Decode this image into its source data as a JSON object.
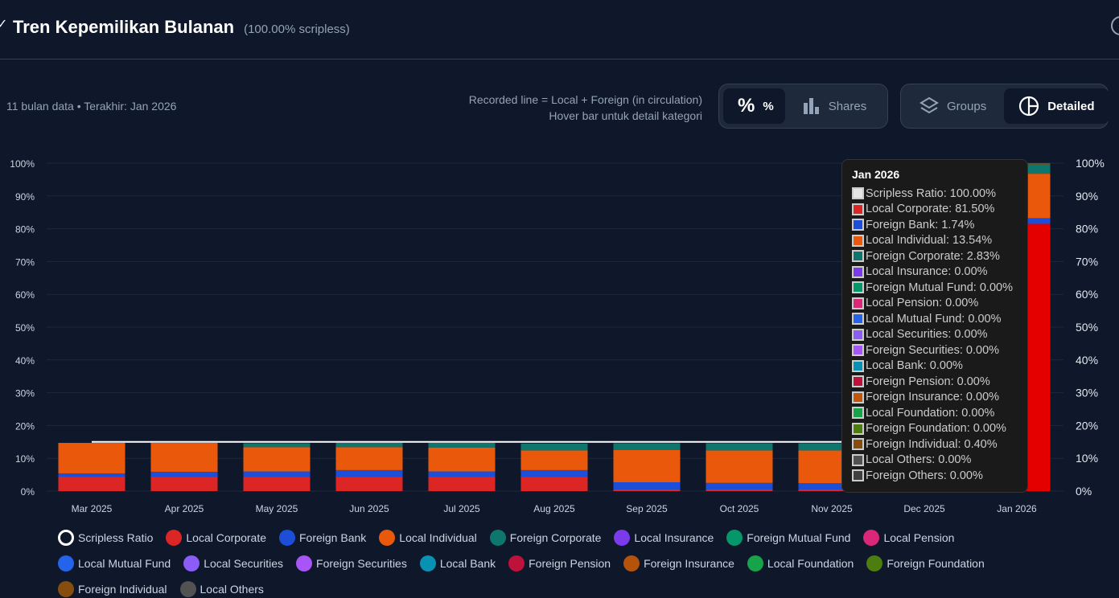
{
  "header": {
    "title": "Tren Kepemilikan Bulanan",
    "subtitle": "(100.00% scripless)"
  },
  "meta": "11 bulan data • Terakhir: Jan 2026",
  "note": [
    "Recorded line = Local + Foreign (in circulation)",
    "Hover bar untuk detail kategori"
  ],
  "toggles": {
    "percent": "%",
    "shares": "Shares",
    "groups": "Groups",
    "detailed": "Detailed"
  },
  "tooltip": {
    "title": "Jan 2026",
    "rows": [
      "Scripless Ratio: 100.00%",
      "Local Corporate: 81.50%",
      "Foreign Bank: 1.74%",
      "Local Individual: 13.54%",
      "Foreign Corporate: 2.83%",
      "Local Insurance: 0.00%",
      "Foreign Mutual Fund: 0.00%",
      "Local Pension: 0.00%",
      "Local Mutual Fund: 0.00%",
      "Local Securities: 0.00%",
      "Foreign Securities: 0.00%",
      "Local Bank: 0.00%",
      "Foreign Pension: 0.00%",
      "Foreign Insurance: 0.00%",
      "Local Foundation: 0.00%",
      "Foreign Foundation: 0.00%",
      "Foreign Individual: 0.40%",
      "Local Others: 0.00%",
      "Foreign Others: 0.00%"
    ],
    "colors": [
      "#e5e5e5",
      "#dc2626",
      "#1d4ed8",
      "#ea580c",
      "#0f766e",
      "#7c3aed",
      "#059669",
      "#db2777",
      "#2563eb",
      "#8b5cf6",
      "#a855f7",
      "#0891b2",
      "#be123c",
      "#c2570c",
      "#16a34a",
      "#4d7c0f",
      "#854d0e",
      "#525252",
      "#404040"
    ]
  },
  "legend": [
    {
      "label": "Scripless Ratio",
      "color": "ring"
    },
    {
      "label": "Local Corporate",
      "color": "#dc2626"
    },
    {
      "label": "Foreign Bank",
      "color": "#1d4ed8"
    },
    {
      "label": "Local Individual",
      "color": "#ea580c"
    },
    {
      "label": "Foreign Corporate",
      "color": "#0f766e"
    },
    {
      "label": "Local Insurance",
      "color": "#7c3aed"
    },
    {
      "label": "Foreign Mutual Fund",
      "color": "#059669"
    },
    {
      "label": "Local Pension",
      "color": "#db2777"
    },
    {
      "label": "Local Mutual Fund",
      "color": "#2563eb"
    },
    {
      "label": "Local Securities",
      "color": "#8b5cf6"
    },
    {
      "label": "Foreign Securities",
      "color": "#a855f7"
    },
    {
      "label": "Local Bank",
      "color": "#0891b2"
    },
    {
      "label": "Foreign Pension",
      "color": "#be123c"
    },
    {
      "label": "Foreign Insurance",
      "color": "#b45309"
    },
    {
      "label": "Local Foundation",
      "color": "#16a34a"
    },
    {
      "label": "Foreign Foundation",
      "color": "#4d7c0f"
    },
    {
      "label": "Foreign Individual",
      "color": "#854d0e"
    },
    {
      "label": "Local Others",
      "color": "#525252"
    }
  ],
  "chart_data": {
    "type": "bar",
    "stacked": true,
    "categories": [
      "Mar 2025",
      "Apr 2025",
      "May 2025",
      "Jun 2025",
      "Jul 2025",
      "Aug 2025",
      "Sep 2025",
      "Oct 2025",
      "Nov 2025",
      "Dec 2025",
      "Jan 2026"
    ],
    "ylim": [
      0,
      100
    ],
    "yticks": [
      "0%",
      "10%",
      "20%",
      "30%",
      "40%",
      "50%",
      "60%",
      "70%",
      "80%",
      "90%",
      "100%"
    ],
    "series": [
      {
        "name": "Local Corporate",
        "color": "#dc2626",
        "values": [
          4.4,
          4.4,
          4.4,
          4.4,
          4.4,
          4.4,
          0.5,
          0.5,
          0.5,
          0.5,
          81.5
        ]
      },
      {
        "name": "Foreign Bank",
        "color": "#1d4ed8",
        "values": [
          1.0,
          1.5,
          1.6,
          2.0,
          1.6,
          2.0,
          2.2,
          2.0,
          1.9,
          1.9,
          1.74
        ]
      },
      {
        "name": "Local Individual",
        "color": "#ea580c",
        "values": [
          9.3,
          8.8,
          7.4,
          7.0,
          7.3,
          6.0,
          9.8,
          9.9,
          10.0,
          10.0,
          13.54
        ]
      },
      {
        "name": "Foreign Corporate",
        "color": "#0f766e",
        "values": [
          0,
          0,
          1.2,
          1.3,
          1.4,
          2.1,
          2.1,
          2.2,
          2.2,
          2.2,
          2.83
        ]
      },
      {
        "name": "Foreign Individual",
        "color": "#854d0e",
        "values": [
          0,
          0,
          0,
          0,
          0,
          0,
          0,
          0,
          0,
          0,
          0.4
        ]
      }
    ],
    "line": {
      "name": "Scripless Ratio",
      "values": [
        15,
        15,
        15,
        15,
        15,
        15,
        15,
        15,
        15,
        15,
        100
      ]
    }
  }
}
